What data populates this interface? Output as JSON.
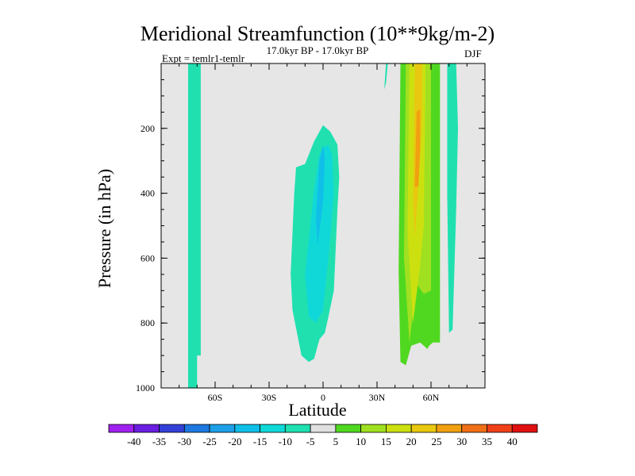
{
  "chart_data": {
    "type": "contour",
    "title": "Meridional Streamfunction (10**9kg/m-2)",
    "subtitle": "17.0kyr BP - 17.0kyr BP",
    "experiment": "Expt = temlr1-temlr",
    "season": "DJF",
    "xlabel": "Latitude",
    "ylabel": "Pressure (in hPa)",
    "xlim": [
      -90,
      90
    ],
    "ylim": [
      1000,
      0
    ],
    "xticks": [
      {
        "value": -60,
        "label": "60S"
      },
      {
        "value": -30,
        "label": "30S"
      },
      {
        "value": 0,
        "label": "0"
      },
      {
        "value": 30,
        "label": "30N"
      },
      {
        "value": 60,
        "label": "60N"
      }
    ],
    "yticks": [
      {
        "value": 200,
        "label": "200"
      },
      {
        "value": 400,
        "label": "400"
      },
      {
        "value": 600,
        "label": "600"
      },
      {
        "value": 800,
        "label": "800"
      },
      {
        "value": 1000,
        "label": "1000"
      }
    ],
    "colorbar": {
      "labels": [
        "-40",
        "-35",
        "-30",
        "-25",
        "-20",
        "-15",
        "-10",
        "-5",
        "5",
        "10",
        "15",
        "20",
        "25",
        "30",
        "35",
        "40"
      ],
      "colors": [
        "#a020f0",
        "#6a1ee0",
        "#3340d8",
        "#1e78e0",
        "#1ea0e8",
        "#10bfe8",
        "#10d8d8",
        "#20e0b0",
        "#e0e0e0",
        "#50d820",
        "#a0e020",
        "#cce010",
        "#e8c810",
        "#f0a010",
        "#f07018",
        "#f04018",
        "#e01010"
      ]
    },
    "regions": [
      {
        "name": "south-polar-cell",
        "value": -7.5,
        "lat": [
          -75,
          -75,
          -68,
          -68,
          -70,
          -70,
          -72,
          -74
        ],
        "p": [
          1000,
          0,
          0,
          900,
          900,
          1000,
          1000,
          1000
        ]
      },
      {
        "name": "tropical-cell-outer",
        "value": -7.5,
        "lat": [
          -18,
          -16,
          -15,
          -10,
          -5,
          0,
          4,
          8,
          9,
          8,
          6,
          3,
          1,
          -2,
          -5,
          -8,
          -12,
          -17,
          -18
        ],
        "p": [
          650,
          400,
          320,
          310,
          240,
          190,
          210,
          250,
          350,
          450,
          700,
          780,
          830,
          850,
          910,
          920,
          900,
          760,
          650
        ]
      },
      {
        "name": "tropical-cell-mid",
        "value": -12.5,
        "lat": [
          -10,
          -5,
          -2,
          0,
          3,
          5,
          6,
          3,
          0,
          -4,
          -8,
          -10
        ],
        "p": [
          650,
          390,
          280,
          260,
          250,
          280,
          400,
          600,
          760,
          800,
          780,
          650
        ]
      },
      {
        "name": "tropical-cell-core",
        "value": -17.5,
        "lat": [
          -4,
          -2,
          0,
          1,
          0,
          -3,
          -4
        ],
        "p": [
          480,
          300,
          250,
          290,
          430,
          560,
          480
        ]
      },
      {
        "name": "north-midlat-cell-outer",
        "value": 7.5,
        "lat": [
          42,
          43,
          65,
          65,
          61,
          59,
          58,
          54,
          49,
          46,
          43,
          42
        ],
        "p": [
          640,
          0,
          0,
          860,
          860,
          870,
          880,
          860,
          870,
          930,
          920,
          640
        ]
      },
      {
        "name": "north-midlat-cell-mid",
        "value": 12.5,
        "lat": [
          45,
          46,
          60,
          60,
          56,
          52,
          48,
          45
        ],
        "p": [
          600,
          0,
          0,
          700,
          710,
          680,
          860,
          600
        ]
      },
      {
        "name": "north-midlat-cell-core",
        "value": 17.5,
        "lat": [
          47,
          48,
          57,
          56,
          54,
          50,
          47
        ],
        "p": [
          520,
          0,
          0,
          500,
          620,
          800,
          520
        ]
      },
      {
        "name": "north-midlat-cell-max",
        "value": 22.5,
        "lat": [
          50,
          51,
          55,
          55,
          53,
          51,
          50
        ],
        "p": [
          420,
          0,
          0,
          180,
          380,
          540,
          420
        ]
      },
      {
        "name": "north-jet-center",
        "value": 27.5,
        "lat": [
          51,
          52,
          54,
          54,
          53,
          51
        ],
        "p": [
          380,
          150,
          140,
          260,
          380,
          380
        ]
      },
      {
        "name": "north-polar-cell",
        "value": -7.5,
        "lat": [
          69,
          69,
          74,
          75,
          74,
          72,
          70,
          69
        ],
        "p": [
          400,
          0,
          0,
          200,
          450,
          820,
          830,
          400
        ]
      },
      {
        "name": "north-trace-cell",
        "value": -7.5,
        "lat": [
          34,
          35,
          36,
          35,
          34
        ],
        "p": [
          80,
          0,
          0,
          60,
          80
        ]
      }
    ]
  }
}
